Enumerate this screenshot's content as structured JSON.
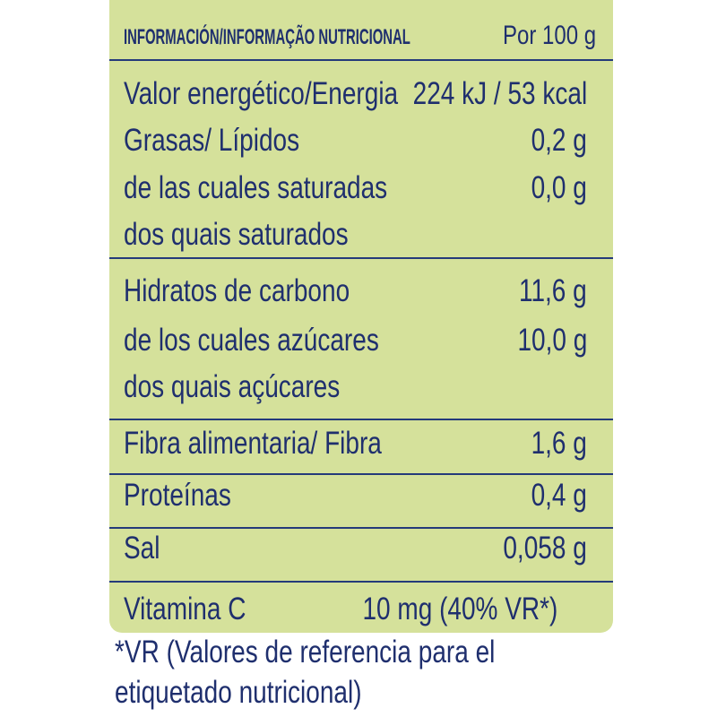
{
  "header": {
    "title": "INFORMACIÓN/INFORMAÇÃO NUTRICIONAL",
    "per": "Por 100 g"
  },
  "rows": [
    {
      "label": "Valor energético/Energia",
      "value": "224 kJ / 53 kcal"
    },
    {
      "label": "Grasas/ Lípidos",
      "value": "0,2 g"
    },
    {
      "label": "de las cuales saturadas",
      "value": "0,0 g"
    },
    {
      "label": "dos quais saturados"
    },
    {
      "label": "Hidratos de carbono",
      "value": "11,6 g"
    },
    {
      "label": "de los cuales azúcares",
      "value": "10,0 g"
    },
    {
      "label": "dos quais açúcares"
    },
    {
      "label": "Fibra alimentaria/ Fibra",
      "value": "1,6 g"
    },
    {
      "label": "Proteínas",
      "value": "0,4 g"
    },
    {
      "label": "Sal",
      "value": "0,058 g"
    },
    {
      "label": "Vitamina C",
      "value": "10 mg (40% VR*)"
    }
  ],
  "footnote": [
    "*VR (Valores de referencia para el",
    "etiquetado nutricional)"
  ]
}
